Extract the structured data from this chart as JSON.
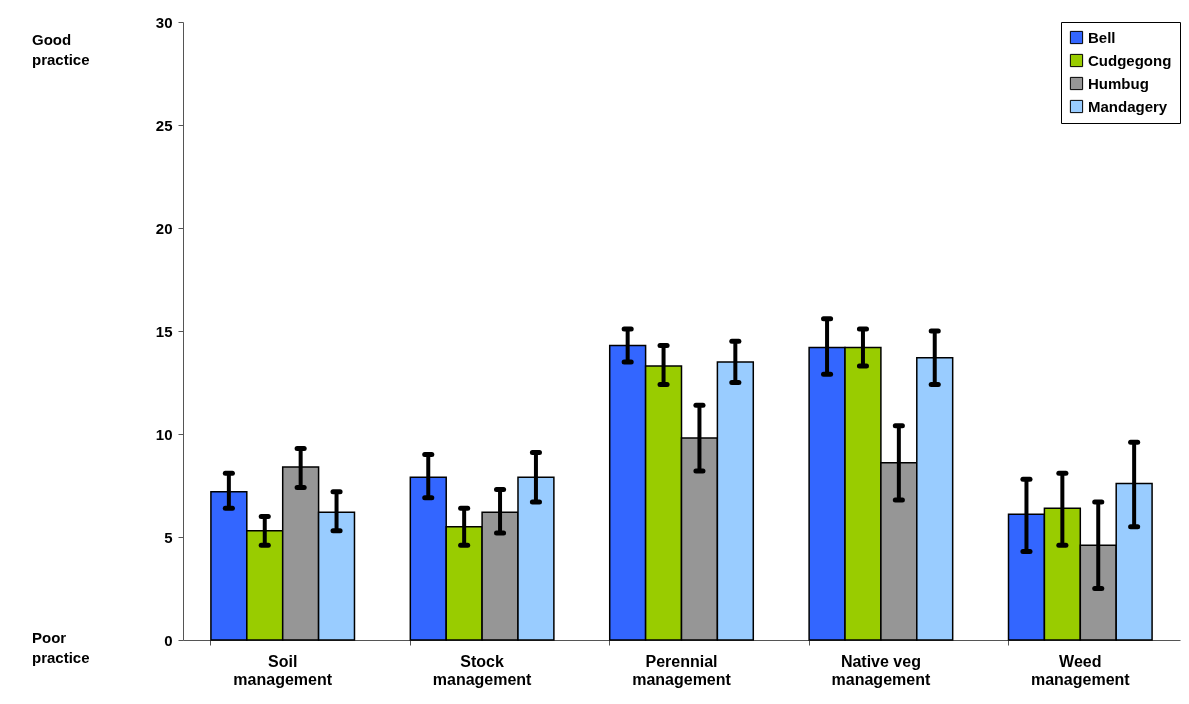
{
  "chart_data": {
    "type": "bar",
    "categories": [
      "Soil management",
      "Stock management",
      "Perennial management",
      "Native veg management",
      "Weed management"
    ],
    "series": [
      {
        "name": "Bell",
        "color": "#3366ff",
        "values": [
          7.2,
          7.9,
          14.3,
          14.2,
          6.1
        ],
        "errors": [
          [
            6.4,
            8.1
          ],
          [
            6.9,
            9.0
          ],
          [
            13.5,
            15.1
          ],
          [
            12.9,
            15.6
          ],
          [
            4.3,
            7.8
          ]
        ]
      },
      {
        "name": "Cudgegong",
        "color": "#99cc00",
        "values": [
          5.3,
          5.5,
          13.3,
          14.2,
          6.4
        ],
        "errors": [
          [
            4.6,
            6.0
          ],
          [
            4.6,
            6.4
          ],
          [
            12.4,
            14.3
          ],
          [
            13.3,
            15.1
          ],
          [
            4.6,
            8.1
          ]
        ]
      },
      {
        "name": "Humbug",
        "color": "#969696",
        "values": [
          8.4,
          6.2,
          9.8,
          8.6,
          4.6
        ],
        "errors": [
          [
            7.4,
            9.3
          ],
          [
            5.2,
            7.3
          ],
          [
            8.2,
            11.4
          ],
          [
            6.8,
            10.4
          ],
          [
            2.5,
            6.7
          ]
        ]
      },
      {
        "name": "Mandagery",
        "color": "#99ccff",
        "values": [
          6.2,
          7.9,
          13.5,
          13.7,
          7.6
        ],
        "errors": [
          [
            5.3,
            7.2
          ],
          [
            6.7,
            9.1
          ],
          [
            12.5,
            14.5
          ],
          [
            12.4,
            15.0
          ],
          [
            5.5,
            9.6
          ]
        ]
      }
    ],
    "ylim": [
      0,
      30
    ],
    "yticks": [
      0,
      5,
      10,
      15,
      20,
      25,
      30
    ],
    "annotations": [
      "Good practice",
      "Poor practice"
    ],
    "legend": "top right",
    "grid": false
  }
}
